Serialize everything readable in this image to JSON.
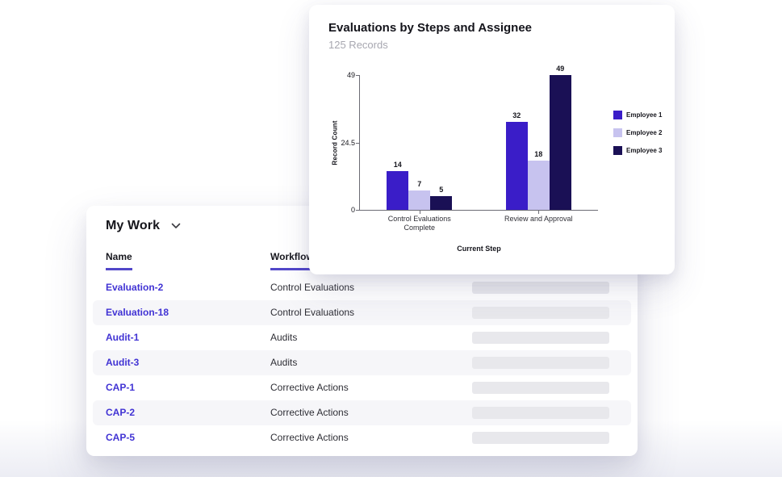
{
  "chart_card": {
    "title": "Evaluations by Steps and Assignee",
    "subtitle": "125 Records"
  },
  "chart_data": {
    "type": "bar",
    "title": "Evaluations by Steps and Assignee",
    "subtitle": "125 Records",
    "categories": [
      "Control Evaluations Complete",
      "Review and Approval"
    ],
    "series": [
      {
        "name": "Employee 1",
        "color": "#3a1dc8",
        "values": [
          14,
          32
        ]
      },
      {
        "name": "Employee 2",
        "color": "#c7c3ef",
        "values": [
          7,
          18
        ]
      },
      {
        "name": "Employee 3",
        "color": "#1a1055",
        "values": [
          5,
          49
        ]
      }
    ],
    "xlabel": "Current Step",
    "ylabel": "Record Count",
    "yticks": [
      "0",
      "24.5",
      "49"
    ],
    "ylim": [
      0,
      49
    ],
    "grid": false,
    "legend_position": "right",
    "value_labels": true
  },
  "table_card": {
    "heading": "My Work",
    "columns": [
      {
        "label": "Name"
      },
      {
        "label": "Workflow"
      }
    ],
    "rows": [
      {
        "name": "Evaluation-2",
        "workflow": "Control Evaluations"
      },
      {
        "name": "Evaluation-18",
        "workflow": "Control Evaluations"
      },
      {
        "name": "Audit-1",
        "workflow": "Audits"
      },
      {
        "name": "Audit-3",
        "workflow": "Audits"
      },
      {
        "name": "CAP-1",
        "workflow": "Corrective Actions"
      },
      {
        "name": "CAP-2",
        "workflow": "Corrective Actions"
      },
      {
        "name": "CAP-5",
        "workflow": "Corrective Actions"
      }
    ]
  },
  "colors": {
    "accent_link": "#4133d4",
    "header_underline": "#5247c9",
    "row_stripe": "#f6f6f9",
    "placeholder_bar": "#e8e8ec"
  }
}
